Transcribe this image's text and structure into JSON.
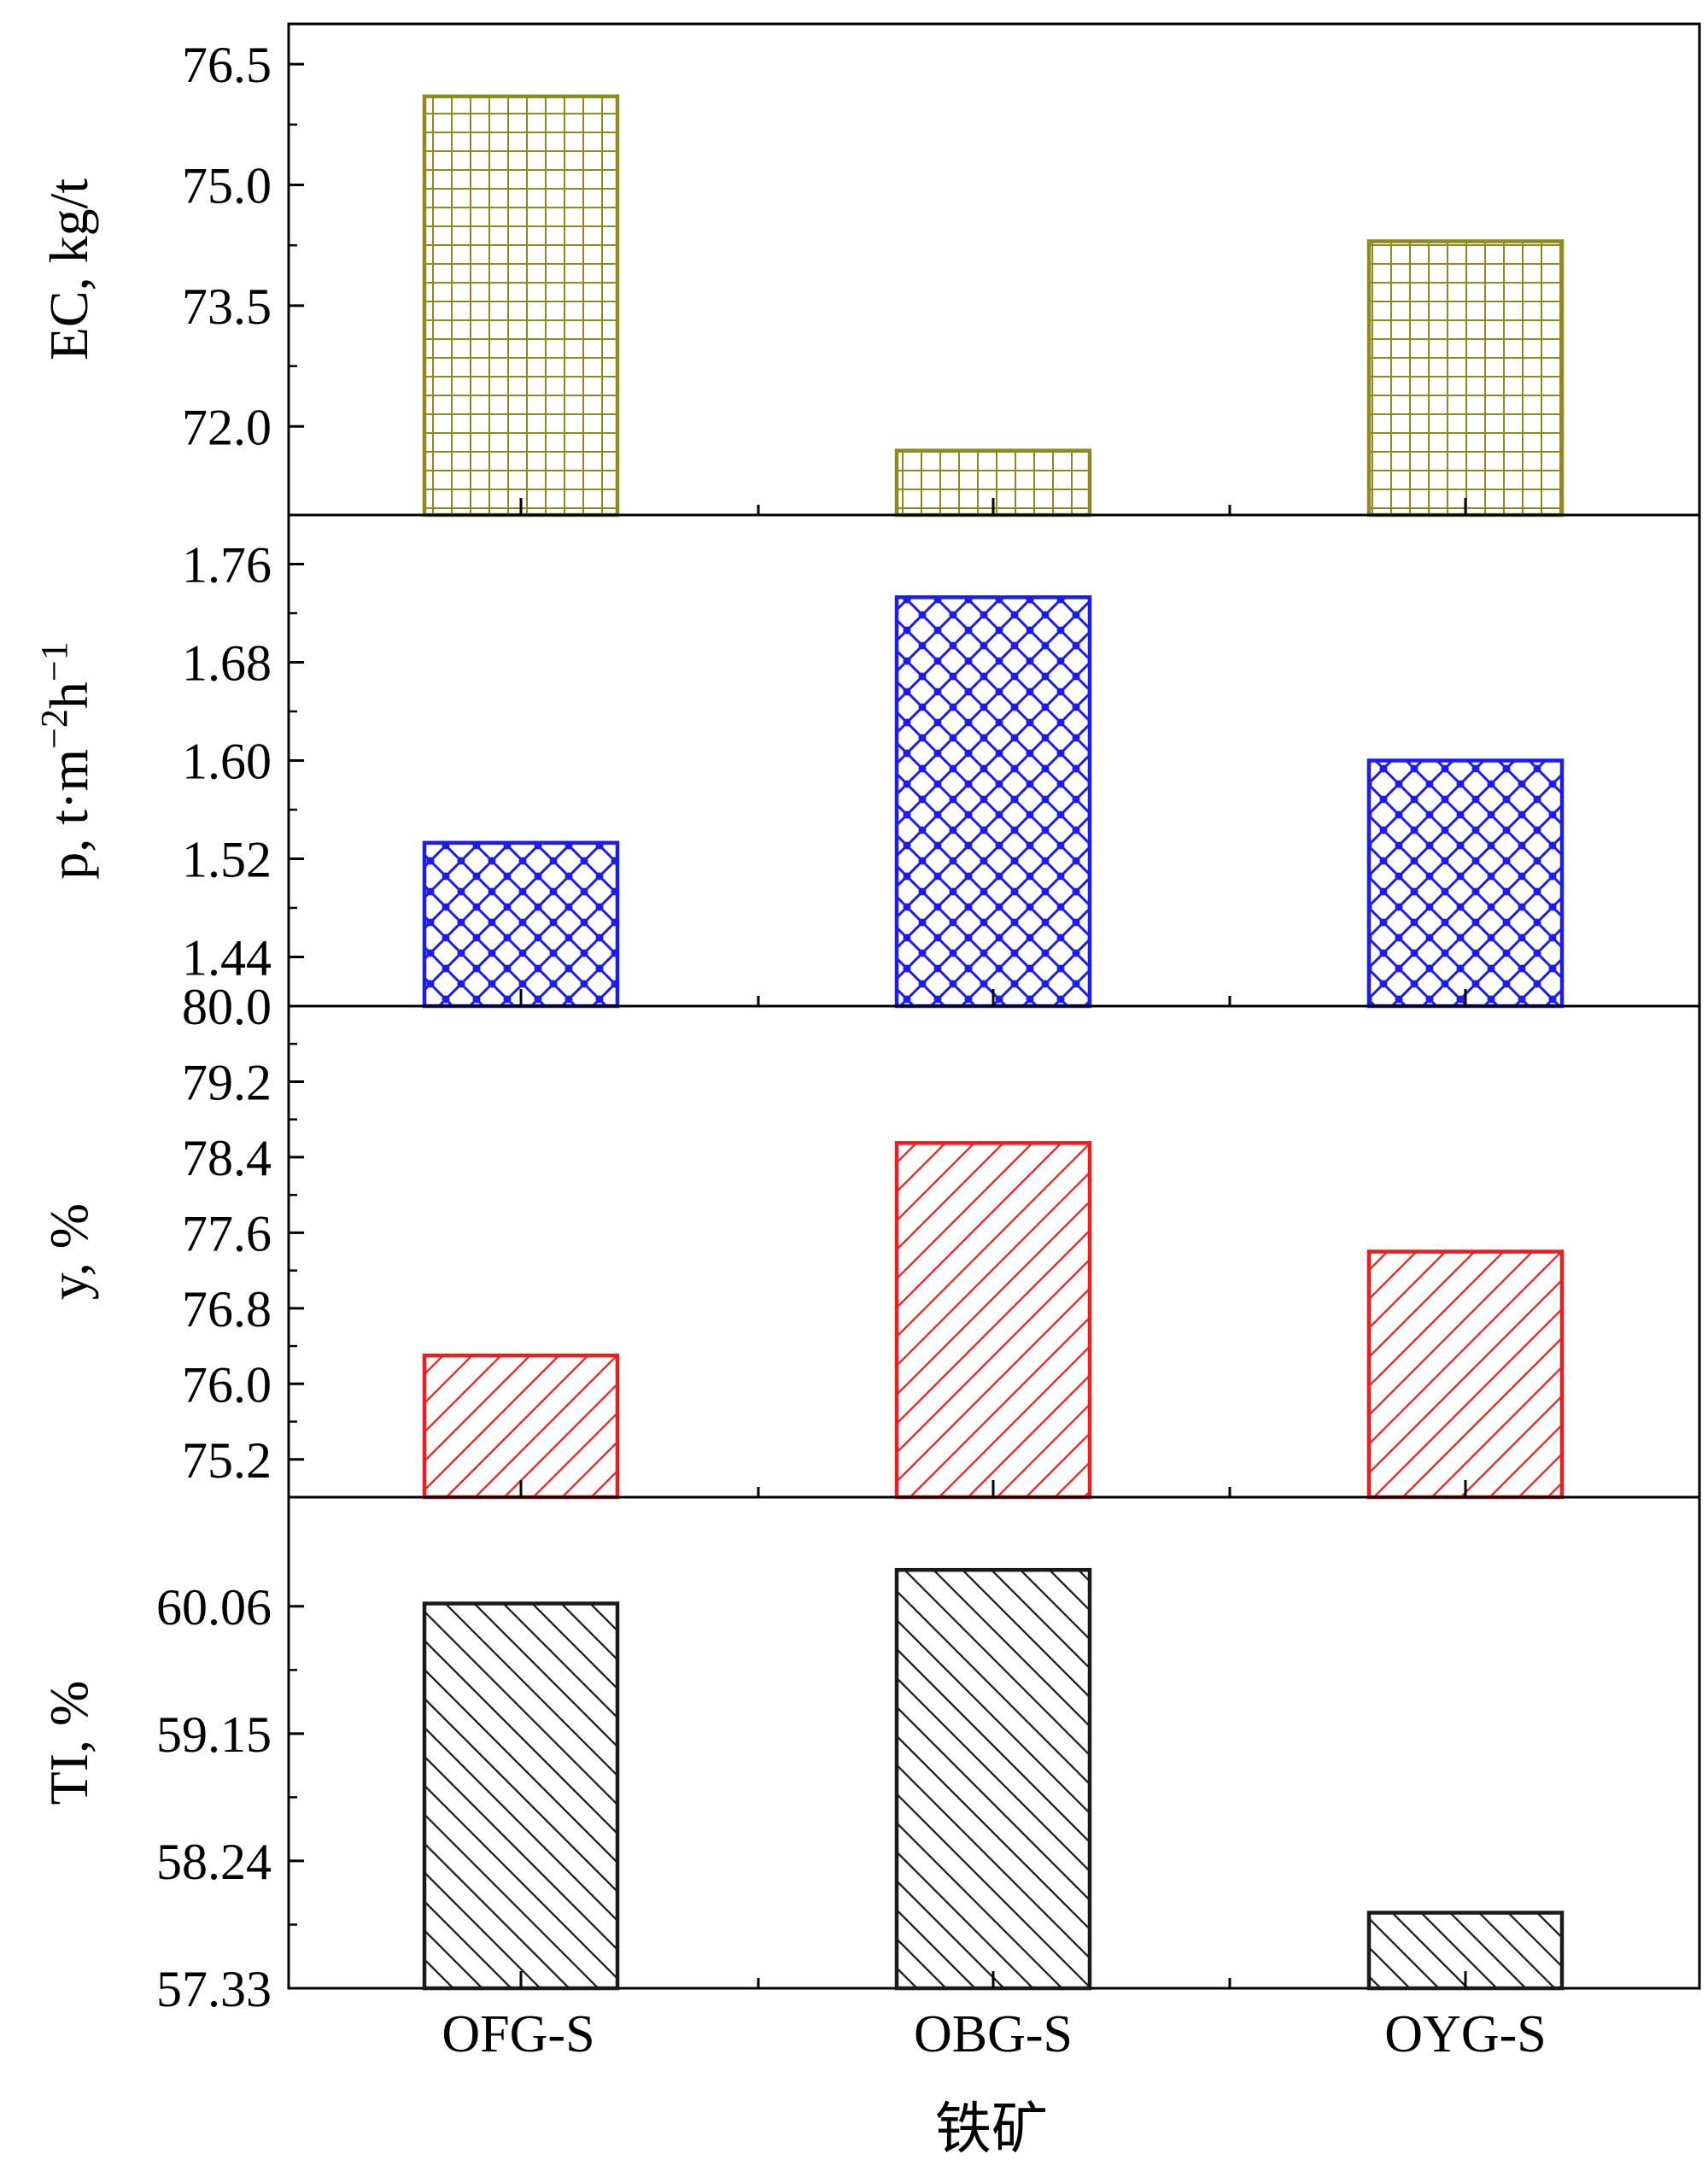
{
  "chart_data": [
    {
      "type": "bar",
      "ylabel": "EC, kg/t",
      "ylim": [
        70.9,
        77.0
      ],
      "yticks": [
        76.5,
        75.0,
        73.5,
        72.0
      ],
      "ytick_labels": [
        "76.5",
        "75.0",
        "73.5",
        "72.0"
      ],
      "categories": [
        "OFG-S",
        "OBG-S",
        "OYG-S"
      ],
      "values": [
        76.1,
        71.7,
        74.3
      ],
      "color": "#8f8a1e",
      "pattern": "grid"
    },
    {
      "type": "bar",
      "ylabel_parts": [
        "p, t·m",
        "−2",
        "h",
        "−1"
      ],
      "ylim": [
        1.4,
        1.8
      ],
      "yticks": [
        1.76,
        1.68,
        1.6,
        1.52,
        1.44
      ],
      "ytick_labels": [
        "1.76",
        "1.68",
        "1.60",
        "1.52",
        "1.44"
      ],
      "categories": [
        "OFG-S",
        "OBG-S",
        "OYG-S"
      ],
      "values": [
        1.533,
        1.733,
        1.6
      ],
      "color": "#1c1cf0",
      "pattern": "crosshatch"
    },
    {
      "type": "bar",
      "ylabel": "y, %",
      "ylim": [
        74.8,
        80.0
      ],
      "yticks": [
        80.0,
        79.2,
        78.4,
        77.6,
        76.8,
        76.0,
        75.2
      ],
      "ytick_labels": [
        "80.0",
        "79.2",
        "78.4",
        "77.6",
        "76.8",
        "76.0",
        "75.2"
      ],
      "categories": [
        "OFG-S",
        "OBG-S",
        "OYG-S"
      ],
      "values": [
        76.3,
        78.55,
        77.4
      ],
      "color": "#f01c1c",
      "pattern": "diag-down"
    },
    {
      "type": "bar",
      "ylabel": "TI, %",
      "ylim": [
        57.33,
        60.84
      ],
      "yticks": [
        60.06,
        59.15,
        58.24,
        57.33
      ],
      "ytick_labels": [
        "60.06",
        "59.15",
        "58.24",
        "57.33"
      ],
      "categories": [
        "OFG-S",
        "OBG-S",
        "OYG-S"
      ],
      "values": [
        60.08,
        60.32,
        57.87
      ],
      "color": "#1a1a1a",
      "pattern": "diag-up"
    }
  ],
  "xlabel": "铁矿"
}
